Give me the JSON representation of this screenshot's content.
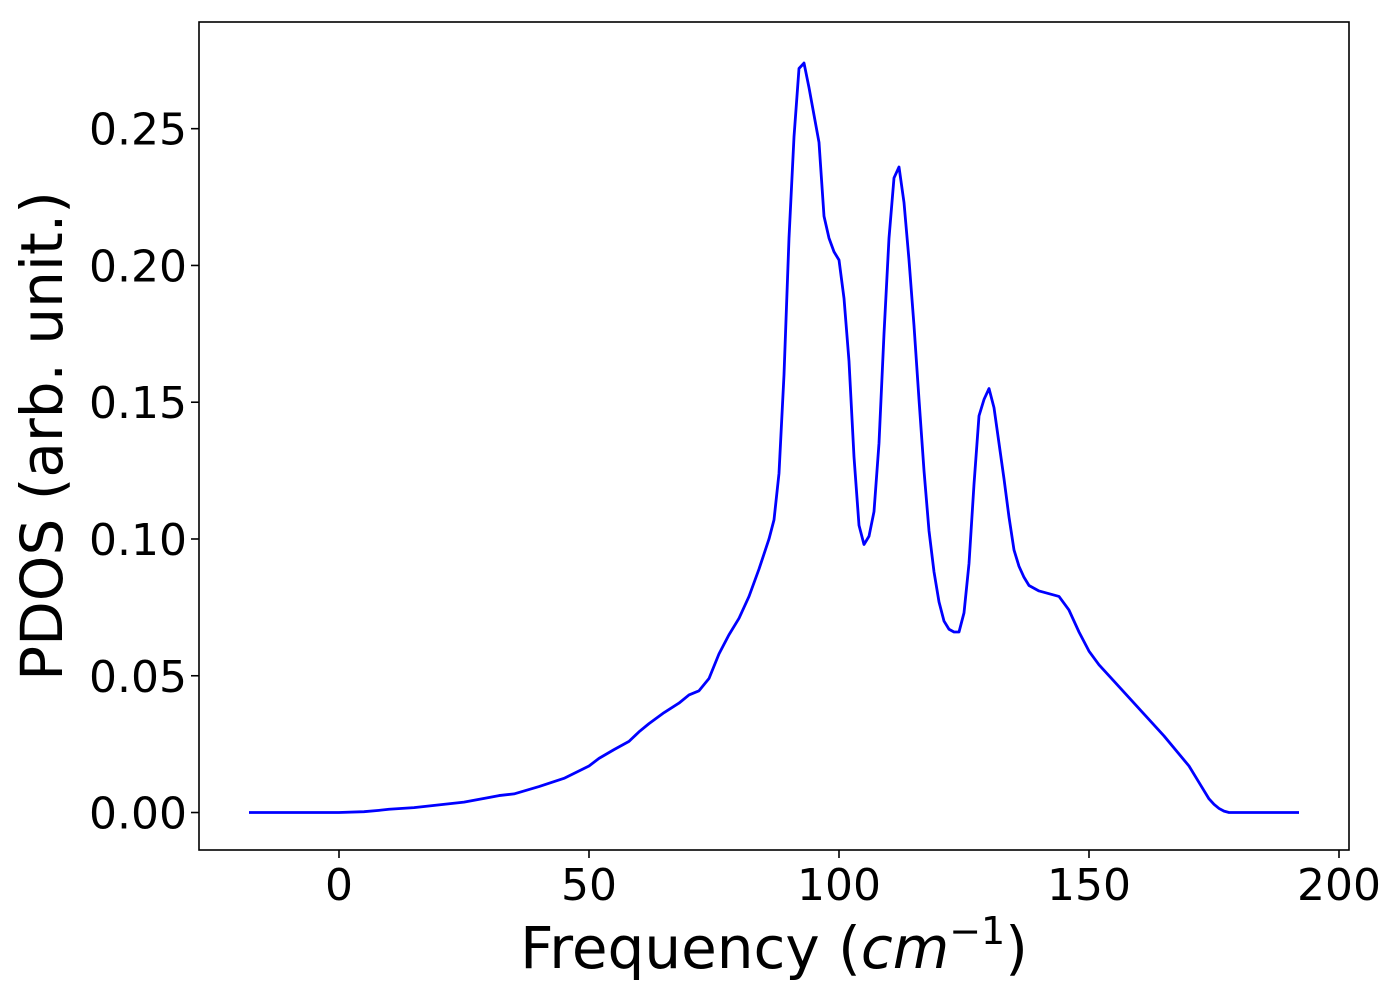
{
  "chart_data": {
    "type": "line",
    "title": "",
    "xlabel": "Frequency",
    "xlabel_unit": {
      "open": " (",
      "base": "cm",
      "exponent": "−1",
      "close": ")"
    },
    "ylabel": "PDOS (arb. unit.)",
    "xlim": [
      -28,
      202
    ],
    "ylim": [
      -0.0137,
      0.289
    ],
    "x_ticks": [
      0,
      50,
      100,
      150,
      200
    ],
    "x_tick_labels": [
      "0",
      "50",
      "100",
      "150",
      "200"
    ],
    "y_ticks": [
      0,
      0.05,
      0.1,
      0.15,
      0.2,
      0.25
    ],
    "y_tick_labels": [
      "0.00",
      "0.05",
      "0.10",
      "0.15",
      "0.20",
      "0.25"
    ],
    "grid": false,
    "legend": "none",
    "series": [
      {
        "color": "#0000ff",
        "x": [
          -18,
          -10,
          0,
          5,
          8,
          10,
          15,
          20,
          25,
          30,
          32,
          35,
          40,
          45,
          50,
          52,
          55,
          58,
          60,
          62,
          65,
          68,
          70,
          72,
          74,
          76,
          78,
          80,
          82,
          84,
          86,
          87,
          88,
          89,
          90,
          91,
          92,
          93,
          94,
          96,
          97,
          98,
          99,
          100,
          101,
          102,
          103,
          104,
          105,
          106,
          107,
          108,
          109,
          110,
          111,
          112,
          113,
          114,
          115,
          116,
          117,
          118,
          119,
          120,
          121,
          122,
          123,
          124,
          125,
          126,
          127,
          128,
          129,
          130,
          131,
          132,
          133,
          134,
          135,
          136,
          137,
          138,
          140,
          142,
          144,
          146,
          148,
          150,
          152,
          155,
          160,
          165,
          170,
          172,
          174,
          175,
          176,
          177,
          178,
          180,
          185,
          192
        ],
        "y": [
          0,
          0,
          0,
          0.0003,
          0.0008,
          0.0012,
          0.0018,
          0.0028,
          0.0038,
          0.0055,
          0.0062,
          0.0068,
          0.0095,
          0.0125,
          0.017,
          0.0198,
          0.023,
          0.026,
          0.0295,
          0.0325,
          0.0365,
          0.04,
          0.043,
          0.0445,
          0.049,
          0.058,
          0.065,
          0.071,
          0.079,
          0.089,
          0.1,
          0.107,
          0.124,
          0.16,
          0.21,
          0.247,
          0.272,
          0.274,
          0.265,
          0.245,
          0.218,
          0.21,
          0.205,
          0.202,
          0.188,
          0.165,
          0.13,
          0.105,
          0.098,
          0.101,
          0.11,
          0.135,
          0.175,
          0.21,
          0.232,
          0.236,
          0.223,
          0.202,
          0.178,
          0.151,
          0.125,
          0.103,
          0.088,
          0.077,
          0.07,
          0.067,
          0.066,
          0.066,
          0.073,
          0.091,
          0.12,
          0.145,
          0.151,
          0.155,
          0.148,
          0.135,
          0.122,
          0.108,
          0.096,
          0.09,
          0.086,
          0.083,
          0.081,
          0.08,
          0.079,
          0.074,
          0.066,
          0.059,
          0.054,
          0.048,
          0.038,
          0.028,
          0.017,
          0.011,
          0.005,
          0.003,
          0.0015,
          0.0005,
          0,
          0,
          0,
          0
        ]
      }
    ]
  }
}
